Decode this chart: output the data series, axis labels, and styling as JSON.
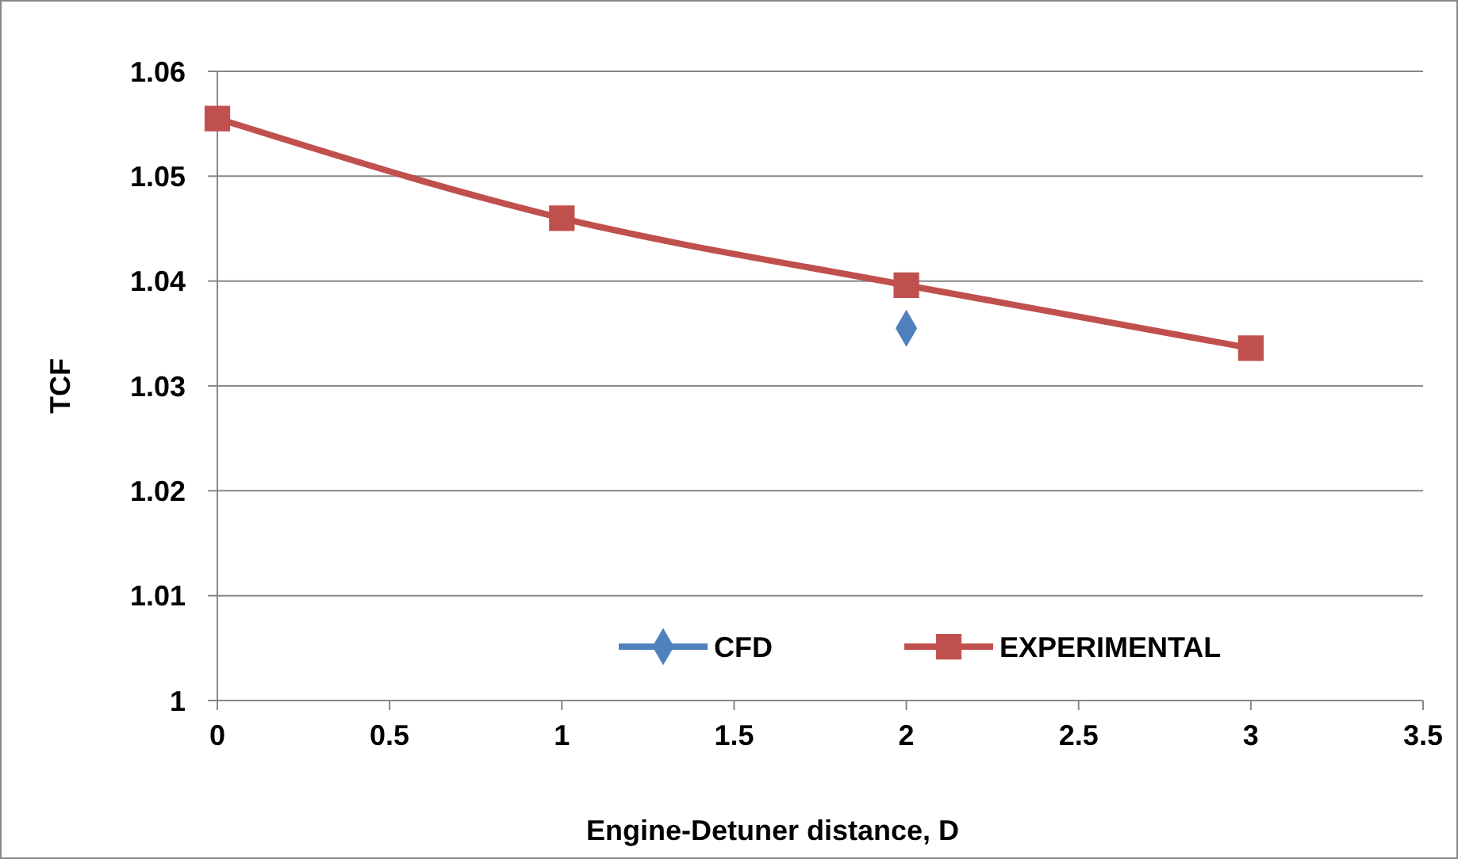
{
  "chart_data": {
    "type": "line",
    "xlabel": "Engine-Detuner distance, D",
    "ylabel": "TCF",
    "xlim": [
      0,
      3.5
    ],
    "xticks": [
      0,
      0.5,
      1,
      1.5,
      2,
      2.5,
      3,
      3.5
    ],
    "ylim": [
      1,
      1.06
    ],
    "yticks": [
      1,
      1.01,
      1.02,
      1.03,
      1.04,
      1.05,
      1.06
    ],
    "grid": "y",
    "legend": "bottom",
    "series": [
      {
        "name": "CFD",
        "color": "#4f81bd",
        "marker": "diamond",
        "x": [
          2
        ],
        "values": [
          1.0355
        ]
      },
      {
        "name": "EXPERIMENTAL",
        "color": "#c0504d",
        "marker": "square",
        "x": [
          0,
          1,
          2,
          3
        ],
        "values": [
          1.0555,
          1.046,
          1.0396,
          1.0336
        ]
      }
    ]
  }
}
